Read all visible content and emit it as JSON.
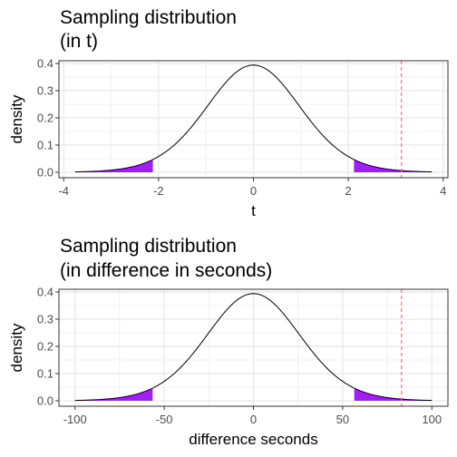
{
  "colors": {
    "curve": "#000000",
    "tail_fill": "#a020f0",
    "observed_line": "#ff6b6b",
    "grid": "#ebebeb",
    "panel_border": "#333333",
    "tick_text": "#4d4d4d"
  },
  "chart_data": [
    {
      "type": "area",
      "title_lines": [
        "Sampling distribution",
        "(in t)"
      ],
      "xlabel": "t",
      "ylabel": "density",
      "curve": "Student t density, centered at 0 (peak ≈ 0.39)",
      "x_range": [
        -3.76,
        3.76
      ],
      "xlim": [
        -4.1,
        4.1
      ],
      "ylim": [
        -0.02,
        0.41
      ],
      "x_ticks": [
        -4,
        -2,
        0,
        2,
        4
      ],
      "x_tick_labels": [
        "-4",
        "-2",
        "0",
        "2",
        "4"
      ],
      "y_ticks": [
        0.0,
        0.1,
        0.2,
        0.3,
        0.4
      ],
      "y_tick_labels": [
        "0.0",
        "0.1",
        "0.2",
        "0.3",
        "0.4"
      ],
      "shaded_tails": [
        [
          -3.76,
          -2.12
        ],
        [
          2.12,
          3.76
        ]
      ],
      "observed_value": 3.12,
      "grid": true
    },
    {
      "type": "area",
      "title_lines": [
        "Sampling distribution",
        "(in difference in seconds)"
      ],
      "xlabel": "difference seconds",
      "ylabel": "density",
      "curve": "same density, x rescaled to difference in seconds",
      "x_range": [
        -100,
        100
      ],
      "xlim": [
        -109,
        109
      ],
      "ylim": [
        -0.02,
        0.41
      ],
      "x_ticks": [
        -100,
        -50,
        0,
        50,
        100
      ],
      "x_tick_labels": [
        "-100",
        "-50",
        "0",
        "50",
        "100"
      ],
      "y_ticks": [
        0.0,
        0.1,
        0.2,
        0.3,
        0.4
      ],
      "y_tick_labels": [
        "0.0",
        "0.1",
        "0.2",
        "0.3",
        "0.4"
      ],
      "shaded_tails": [
        [
          -100,
          -56.5
        ],
        [
          56.5,
          100
        ]
      ],
      "observed_value": 83,
      "grid": true
    }
  ]
}
